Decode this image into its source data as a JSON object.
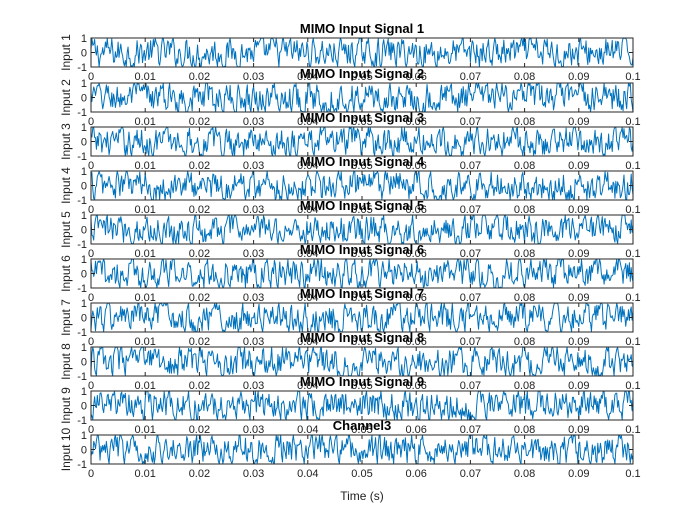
{
  "colors": {
    "line": "#0072bd",
    "axes": "#262626",
    "background": "#ffffff"
  },
  "chart_data": {
    "type": "line",
    "subplot_count": 10,
    "x_axis": {
      "label": "Time (s)",
      "lim": [
        0,
        0.1
      ],
      "ticks": [
        0,
        0.01,
        0.02,
        0.03,
        0.04,
        0.05,
        0.06,
        0.07,
        0.08,
        0.09,
        0.1
      ],
      "tick_labels": [
        "0",
        "0.01",
        "0.02",
        "0.03",
        "0.04",
        "0.05",
        "0.06",
        "0.07",
        "0.08",
        "0.09",
        "0.1"
      ]
    },
    "grid": false,
    "legend": "none",
    "subplots": [
      {
        "title": "MIMO Input Signal 1",
        "ylabel": "Input 1",
        "ylim": [
          -1,
          1
        ],
        "yticks": [
          -1,
          0,
          1
        ],
        "ytick_labels": [
          "-1",
          "0",
          "1"
        ]
      },
      {
        "title": "MIMO Input Signal 2",
        "ylabel": "Input 2",
        "ylim": [
          -1,
          1
        ],
        "yticks": [
          -1,
          0,
          1
        ],
        "ytick_labels": [
          "-1",
          "0",
          "1"
        ]
      },
      {
        "title": "MIMO Input Signal 3",
        "ylabel": "Input 3",
        "ylim": [
          -1,
          1
        ],
        "yticks": [
          -1,
          0,
          1
        ],
        "ytick_labels": [
          "-1",
          "0",
          "1"
        ]
      },
      {
        "title": "MIMO Input Signal 4",
        "ylabel": "Input 4",
        "ylim": [
          -1,
          1
        ],
        "yticks": [
          -1,
          0,
          1
        ],
        "ytick_labels": [
          "-1",
          "0",
          "1"
        ]
      },
      {
        "title": "MIMO Input Signal 5",
        "ylabel": "Input 5",
        "ylim": [
          -1,
          1
        ],
        "yticks": [
          -1,
          0,
          1
        ],
        "ytick_labels": [
          "-1",
          "0",
          "1"
        ]
      },
      {
        "title": "MIMO Input Signal 6",
        "ylabel": "Input 6",
        "ylim": [
          -1,
          1
        ],
        "yticks": [
          -1,
          0,
          1
        ],
        "ytick_labels": [
          "-1",
          "0",
          "1"
        ]
      },
      {
        "title": "MIMO Input Signal 7",
        "ylabel": "Input 7",
        "ylim": [
          -1,
          1
        ],
        "yticks": [
          -1,
          0,
          1
        ],
        "ytick_labels": [
          "-1",
          "0",
          "1"
        ]
      },
      {
        "title": "MIMO Input Signal 8",
        "ylabel": "Input 8",
        "ylim": [
          -1,
          1
        ],
        "yticks": [
          -1,
          0,
          1
        ],
        "ytick_labels": [
          "-1",
          "0",
          "1"
        ]
      },
      {
        "title": "MIMO Input Signal 9",
        "ylabel": "Input 9",
        "ylim": [
          -1,
          1
        ],
        "yticks": [
          -1,
          0,
          1
        ],
        "ytick_labels": [
          "-1",
          "0",
          "1"
        ]
      },
      {
        "title": "Channel3",
        "ylabel": "Input 10",
        "ylim": [
          -1,
          1
        ],
        "yticks": [
          -1,
          0,
          1
        ],
        "ytick_labels": [
          "-1",
          "0",
          "1"
        ]
      }
    ]
  }
}
